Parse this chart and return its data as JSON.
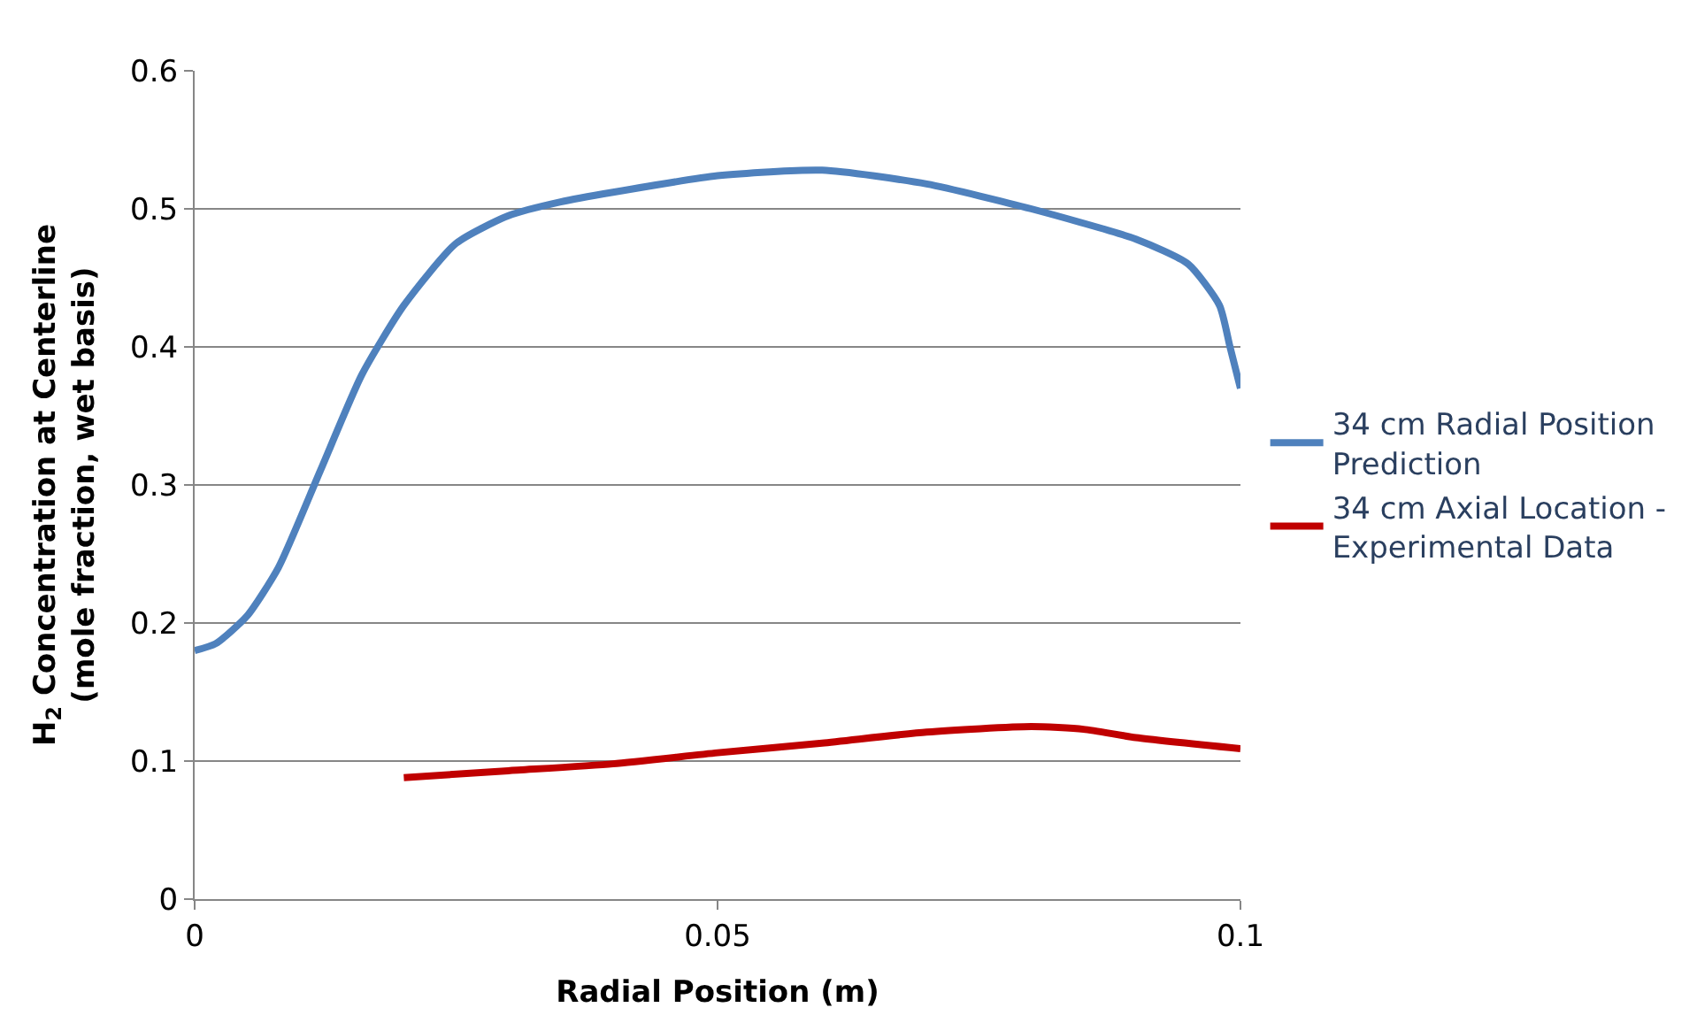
{
  "chart_data": {
    "type": "line",
    "xlabel": "Radial Position (m)",
    "ylabel": "H$_{2}$ Concentration at Centerline\n(mole fraction, wet basis)",
    "xlim": [
      0,
      0.1
    ],
    "xticks": [
      0,
      0.05,
      0.1
    ],
    "ylim": [
      0,
      0.6
    ],
    "yticks": [
      0,
      0.1,
      0.2,
      0.3,
      0.4,
      0.5,
      0.6
    ],
    "grid": "y",
    "legend": "right",
    "marker": "none",
    "line_style": "solid",
    "series": [
      {
        "name": "34 cm Radial Position\nPrediction",
        "color": "#4f81bd",
        "x": [
          0,
          0.002,
          0.005,
          0.008,
          0.012,
          0.016,
          0.02,
          0.025,
          0.03,
          0.035,
          0.04,
          0.05,
          0.06,
          0.07,
          0.08,
          0.09,
          0.095,
          0.098,
          0.099,
          0.1
        ],
        "values": [
          0.18,
          0.185,
          0.205,
          0.24,
          0.31,
          0.38,
          0.43,
          0.475,
          0.495,
          0.505,
          0.512,
          0.524,
          0.528,
          0.518,
          0.5,
          0.478,
          0.46,
          0.43,
          0.4,
          0.37
        ]
      },
      {
        "name": "34 cm Axial Location -\nExperimental Data",
        "color": "#c00000",
        "x": [
          0.02,
          0.03,
          0.04,
          0.05,
          0.06,
          0.07,
          0.08,
          0.085,
          0.09,
          0.1
        ],
        "values": [
          0.088,
          0.093,
          0.098,
          0.106,
          0.113,
          0.121,
          0.125,
          0.123,
          0.117,
          0.109
        ]
      }
    ]
  }
}
